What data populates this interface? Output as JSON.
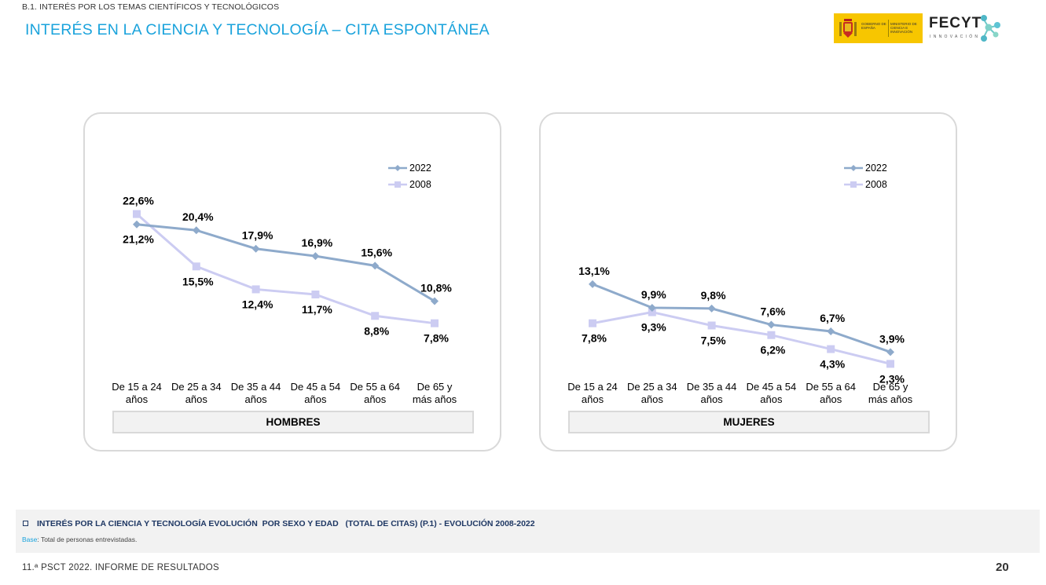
{
  "header": {
    "section": "B.1. INTERÉS POR LOS TEMAS CIENTÍFICOS Y TECNOLÓGICOS",
    "title": "INTERÉS EN LA CIENCIA Y TECNOLOGÍA – CITA ESPONTÁNEA"
  },
  "logos": {
    "gov_left": "GOBIERNO DE ESPAÑA",
    "gov_right": "MINISTERIO DE CIENCIA E INNOVACIÓN",
    "fecyt": "FECYT",
    "fecyt_sub": "INNOVACIÓN"
  },
  "chart_data": [
    {
      "type": "line",
      "panel": "HOMBRES",
      "categories": [
        [
          "De 15 a 24",
          "años"
        ],
        [
          "De 25 a 34",
          "años"
        ],
        [
          "De 35 a 44",
          "años"
        ],
        [
          "De 45 a 54",
          "años"
        ],
        [
          "De 55 a 64",
          "años"
        ],
        [
          "De 65 y",
          "más años"
        ]
      ],
      "series": [
        {
          "name": "2022",
          "values": [
            21.2,
            20.4,
            17.9,
            16.9,
            15.6,
            10.8
          ],
          "labels": [
            "21,2%",
            "20,4%",
            "17,9%",
            "16,9%",
            "15,6%",
            "10,8%"
          ],
          "color": "#8eaacb",
          "marker": "diamond"
        },
        {
          "name": "2008",
          "values": [
            22.6,
            15.5,
            12.4,
            11.7,
            8.8,
            7.8
          ],
          "labels": [
            "22,6%",
            "15,5%",
            "12,4%",
            "11,7%",
            "8,8%",
            "7,8%"
          ],
          "color": "#ccccf2",
          "marker": "square"
        }
      ],
      "ylim": [
        0,
        25
      ],
      "grid": false,
      "legend": "top-right"
    },
    {
      "type": "line",
      "panel": "MUJERES",
      "categories": [
        [
          "De 15 a 24",
          "años"
        ],
        [
          "De 25 a 34",
          "años"
        ],
        [
          "De 35 a 44",
          "años"
        ],
        [
          "De 45 a 54",
          "años"
        ],
        [
          "De 55 a 64",
          "años"
        ],
        [
          "De 65 y",
          "más años"
        ]
      ],
      "series": [
        {
          "name": "2022",
          "values": [
            13.1,
            9.9,
            9.8,
            7.6,
            6.7,
            3.9
          ],
          "labels": [
            "13,1%",
            "9,9%",
            "9,8%",
            "7,6%",
            "6,7%",
            "3,9%"
          ],
          "color": "#8eaacb",
          "marker": "diamond"
        },
        {
          "name": "2008",
          "values": [
            7.8,
            9.3,
            7.5,
            6.2,
            4.3,
            2.3
          ],
          "labels": [
            "7,8%",
            "9,3%",
            "7,5%",
            "6,2%",
            "4,3%",
            "2,3%"
          ],
          "color": "#ccccf2",
          "marker": "square"
        }
      ],
      "ylim": [
        0,
        25
      ],
      "grid": false,
      "legend": "top-right"
    }
  ],
  "footer": {
    "caption": "INTERÉS POR LA CIENCIA Y TECNOLOGÍA EVOLUCIÓN  POR SEXO Y EDAD   (TOTAL DE CITAS) (P.1) - EVOLUCIÓN 2008-2022",
    "base_label": "Base",
    "base_text": ": Total de personas entrevistadas.",
    "report": "11.ª PSCT 2022. INFORME DE RESULTADOS",
    "page": "20"
  }
}
